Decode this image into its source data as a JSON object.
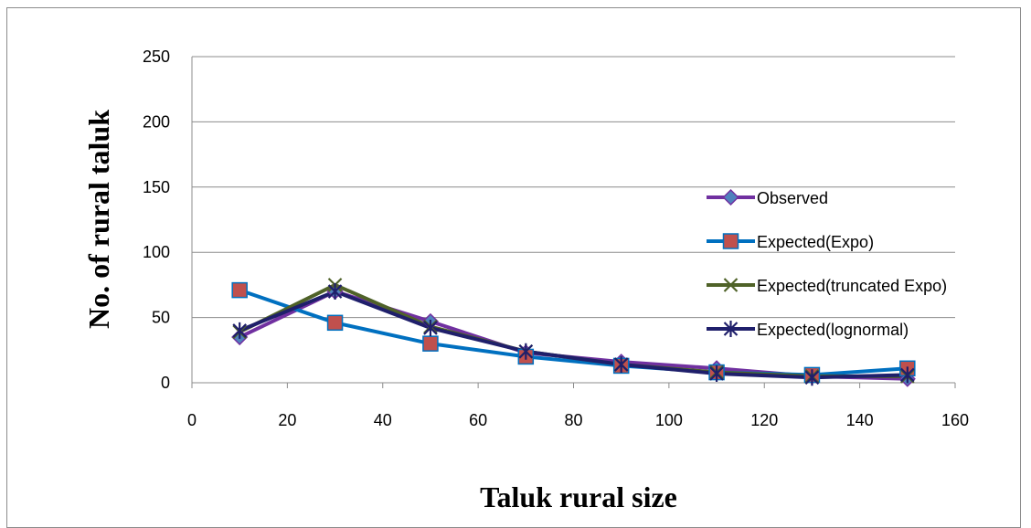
{
  "chart_data": {
    "type": "line",
    "title": "",
    "xlabel": "Taluk rural size",
    "ylabel": "No. of rural taluk",
    "xlim": [
      0,
      160
    ],
    "ylim": [
      0,
      250
    ],
    "xticks": [
      0,
      20,
      40,
      60,
      80,
      100,
      120,
      140,
      160
    ],
    "yticks": [
      0,
      50,
      100,
      150,
      200,
      250
    ],
    "x": [
      10,
      30,
      50,
      70,
      90,
      110,
      130,
      150
    ],
    "grid": "horizontal",
    "legend_position": "right",
    "series": [
      {
        "name": "Observed",
        "values": [
          35,
          70,
          47,
          23,
          16,
          11,
          5,
          3
        ],
        "color": "#7030a0",
        "marker": "diamond",
        "marker_color": "#4f81bd"
      },
      {
        "name": "Expected(Expo)",
        "values": [
          71,
          46,
          30,
          20,
          13,
          8,
          6,
          11
        ],
        "color": "#0070c0",
        "marker": "square",
        "marker_color": "#c0504d"
      },
      {
        "name": "Expected(truncated Expo)",
        "values": [
          39,
          75,
          43,
          24,
          14,
          8,
          5,
          5
        ],
        "color": "#4f6228",
        "marker": "x",
        "marker_color": "#4f6228"
      },
      {
        "name": "Expected(lognormal)",
        "values": [
          40,
          70,
          42,
          24,
          14,
          7,
          4,
          6
        ],
        "color": "#1f1f6b",
        "marker": "star",
        "marker_color": "#1f1f6b"
      }
    ]
  }
}
